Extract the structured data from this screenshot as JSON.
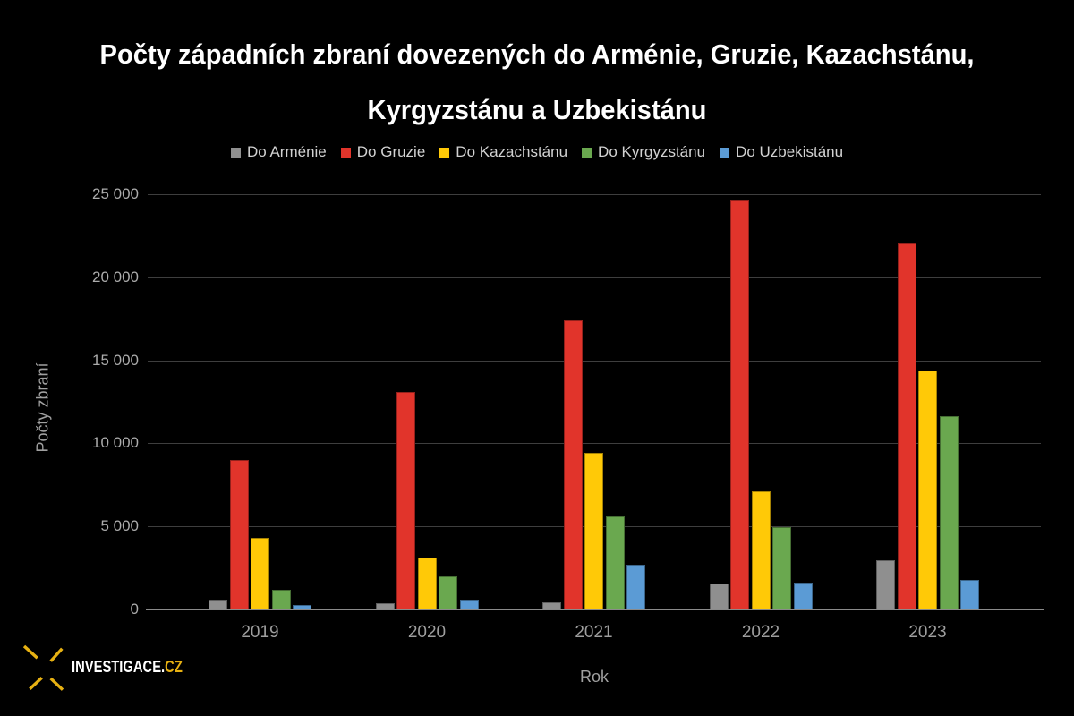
{
  "title": {
    "line1": "Počty západních zbraní dovezených do Arménie, Gruzie, Kazachstánu,",
    "line2": "Kyrgyzstánu a Uzbekistánu"
  },
  "axes": {
    "y_title": "Počty zbraní",
    "x_title": "Rok",
    "y_ticks": [
      "25 000",
      "20 000",
      "15 000",
      "10 000",
      "5 000",
      "0"
    ]
  },
  "footer": {
    "brand_main": "INVESTIGACE.",
    "brand_suffix": "CZ",
    "logo_color": "#e7b112"
  },
  "colors": {
    "background": "#000000",
    "title_text": "#ffffff",
    "axis_text": "#a6a6a6",
    "gridline": "#3e3e3e",
    "axis_line": "#8b8b8b"
  },
  "chart_data": {
    "type": "bar",
    "title": "Počty západních zbraní dovezených do Arménie, Gruzie, Kazachstánu, Kyrgyzstánu a Uzbekistánu",
    "categories": [
      "2019",
      "2020",
      "2021",
      "2022",
      "2023"
    ],
    "series": [
      {
        "name": "Do Arménie",
        "color": "#8f8f8f",
        "values": [
          600,
          400,
          450,
          1550,
          2950
        ]
      },
      {
        "name": "Do Gruzie",
        "color": "#e1342b",
        "values": [
          9000,
          13100,
          17400,
          24600,
          22050
        ]
      },
      {
        "name": "Do Kazachstánu",
        "color": "#ffc907",
        "values": [
          4300,
          3100,
          9450,
          7100,
          14400
        ]
      },
      {
        "name": "Do Kyrgyzstánu",
        "color": "#6aa84f",
        "values": [
          1200,
          2000,
          5600,
          4950,
          11650
        ]
      },
      {
        "name": "Do Uzbekistánu",
        "color": "#5b9bd5",
        "values": [
          250,
          600,
          2700,
          1600,
          1800
        ]
      }
    ],
    "xlabel": "Rok",
    "ylabel": "Počty zbraní",
    "ylim": [
      0,
      25000
    ],
    "ytick_step": 5000,
    "grid": true,
    "legend_position": "top"
  }
}
